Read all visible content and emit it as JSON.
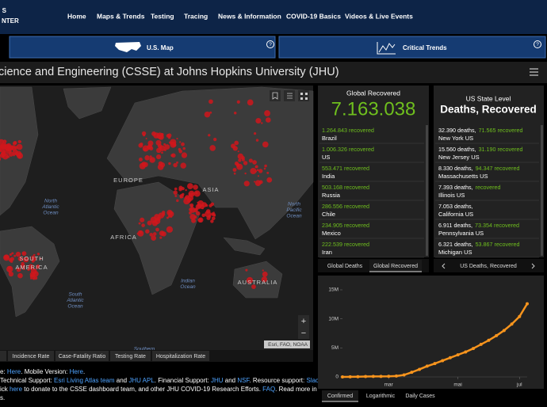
{
  "nav": {
    "logo_lines": [
      "S",
      "NTER"
    ],
    "items": [
      "Home",
      "Maps & Trends",
      "Testing",
      "Tracing",
      "News & Information",
      "COVID-19 Basics",
      "Videos & Live Events"
    ]
  },
  "subnav": {
    "items": [
      "U.S. Map",
      "Critical Trends"
    ],
    "help": "?"
  },
  "header": {
    "title": "cience and Engineering (CSSE) at Johns Hopkins University (JHU)"
  },
  "map": {
    "labels": [
      [
        "EUROPE"
      ],
      [
        "ASIA"
      ],
      [
        "AFRICA"
      ],
      [
        "SOUTH",
        "AMERICA"
      ],
      [
        "North",
        "Atlantic",
        "Ocean"
      ],
      [
        "North",
        "Pacific",
        "Ocean"
      ],
      [
        "South",
        "Atlantic",
        "Ocean"
      ],
      [
        "Indian",
        "Ocean"
      ],
      [
        "AUSTRALIA"
      ],
      [
        "Southern"
      ]
    ],
    "attribution": "Esri, FAO, NOAA",
    "zoom": [
      "+",
      "−"
    ]
  },
  "map_tabs": [
    "Incidence Rate",
    "Case-Fatality Ratio",
    "Testing Rate",
    "Hospitalization Rate"
  ],
  "global_panel": {
    "title": "Global Recovered",
    "total": "7.163.038",
    "rows": [
      {
        "value": "1.264.843 recovered",
        "place": "Brazil"
      },
      {
        "value": "1.006.326 recovered",
        "place": "US"
      },
      {
        "value": "553.471 recovered",
        "place": "India"
      },
      {
        "value": "503.168 recovered",
        "place": "Russia"
      },
      {
        "value": "286.556 recovered",
        "place": "Chile"
      },
      {
        "value": "234.905 recovered",
        "place": "Mexico"
      },
      {
        "value": "222.539 recovered",
        "place": "Iran"
      }
    ]
  },
  "global_tabs": [
    "Global Deaths",
    "Global Recovered"
  ],
  "state_panel": {
    "title": "US State Level",
    "subtitle": "Deaths, Recovered",
    "rows": [
      {
        "deaths": "32.390 deaths,",
        "recovered": "71.565 recovered",
        "place": "New York US"
      },
      {
        "deaths": "15.560 deaths,",
        "recovered": "31.190 recovered",
        "place": "New Jersey US"
      },
      {
        "deaths": "8.330 deaths,",
        "recovered": "94.347 recovered",
        "place": "Massachusetts US"
      },
      {
        "deaths": "7.393 deaths,",
        "recovered": "recovered",
        "place": "Illinois US"
      },
      {
        "deaths": "7.053 deaths,",
        "place": "California US"
      },
      {
        "deaths": "6.911 deaths,",
        "recovered": "73.354 recovered",
        "place": "Pennsylvania US"
      },
      {
        "deaths": "6.321 deaths,",
        "recovered": "53.867 recovered",
        "place": "Michigan US"
      }
    ]
  },
  "state_tabs": [
    "US Deaths, Recovered"
  ],
  "chart_data": {
    "type": "line",
    "categories": [
      null,
      null,
      null,
      null,
      null,
      null,
      "mar",
      null,
      null,
      null,
      null,
      null,
      null,
      null,
      null,
      "mai",
      null,
      null,
      null,
      null,
      null,
      null,
      null,
      "jul",
      null
    ],
    "series": [
      {
        "color": "#f7941d",
        "values": [
          0,
          10000,
          40000,
          70000,
          80000,
          90000,
          100000,
          150000,
          340000,
          800000,
          1300000,
          1850000,
          2300000,
          2800000,
          3300000,
          3800000,
          4300000,
          4900000,
          5600000,
          6300000,
          7100000,
          8000000,
          9100000,
          10400000,
          12600000
        ]
      }
    ],
    "ylim": [
      0,
      15000000
    ],
    "yticks": [
      0,
      {
        "value": 5000000,
        "label": "5M"
      },
      {
        "value": 10000000,
        "label": "10M"
      },
      {
        "value": 15000000,
        "label": "15M"
      }
    ]
  },
  "chart_tabs": [
    "Confirmed",
    "Logarithmic",
    "Daily Cases"
  ],
  "footer": {
    "lines": [
      [
        {
          "text": "e: ",
          "link": false
        },
        {
          "text": "Here",
          "link": true
        },
        {
          "text": ". Mobile Version: ",
          "link": false
        },
        {
          "text": "Here",
          "link": true
        },
        {
          "text": ".",
          "link": false
        }
      ],
      [
        {
          "text": "Technical Support: ",
          "link": false
        },
        {
          "text": "Esri Living Atlas team",
          "link": true
        },
        {
          "text": " and ",
          "link": false
        },
        {
          "text": "JHU APL",
          "link": true
        },
        {
          "text": ". Financial Support: ",
          "link": false
        },
        {
          "text": "JHU",
          "link": true
        },
        {
          "text": " and ",
          "link": false
        },
        {
          "text": "NSF",
          "link": true
        },
        {
          "text": ". Resource support: ",
          "link": false
        },
        {
          "text": "Slack",
          "link": true
        },
        {
          "text": ",",
          "link": false
        }
      ],
      [
        {
          "text": "ick ",
          "link": false
        },
        {
          "text": "here",
          "link": true
        },
        {
          "text": " to ",
          "link": false
        },
        {
          "text": "donate",
          "link": false
        },
        {
          "text": " to the CSSE dashboard team, and other JHU COVID-19 Research Efforts. ",
          "link": false
        },
        {
          "text": "FAQ",
          "link": true
        },
        {
          "text": ". Read more in",
          "link": false
        }
      ],
      [
        {
          "text": "s.",
          "link": false
        }
      ]
    ]
  }
}
